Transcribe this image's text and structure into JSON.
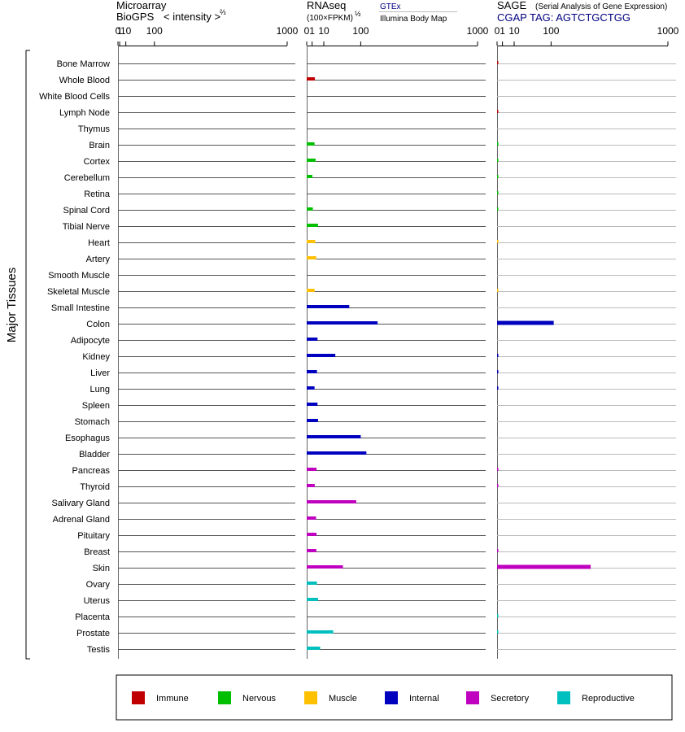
{
  "side_label": "Major Tissues",
  "headers": {
    "microarray": {
      "line1": "Microarray",
      "line2": "BioGPS",
      "scale_label": "< intensity >",
      "scale_exp": "⅔"
    },
    "rnaseq": {
      "line1": "RNAseq",
      "line2": "(100×FPKM)",
      "scale_exp": "½",
      "source_gtex": "GTEx",
      "source_ibm": "Illumina Body Map"
    },
    "sage": {
      "line1": "SAGE",
      "subtitle": "(Serial Analysis of Gene Expression)",
      "tag_label": "CGAP TAG: AGTCTGCTGG"
    }
  },
  "ticks": [
    "0",
    "1",
    "10",
    "100",
    "1000"
  ],
  "colors": {
    "Immune": "#c00000",
    "Nervous": "#00bf00",
    "Muscle": "#ffc000",
    "Internal": "#0000bf",
    "Secretory": "#bf00bf",
    "Reproductive": "#00bfbf",
    "grid_dark": "#555555",
    "grid_light": "#bbbbbb",
    "sage_tag": "#000080",
    "gtex_text": "#000080"
  },
  "legend": [
    "Immune",
    "Nervous",
    "Muscle",
    "Internal",
    "Secretory",
    "Reproductive"
  ],
  "chart_data": {
    "type": "bar",
    "orientation": "horizontal",
    "scale": "power",
    "xlim": [
      0,
      1000
    ],
    "categories": [
      "Bone Marrow",
      "Whole Blood",
      "White Blood Cells",
      "Lymph Node",
      "Thymus",
      "Brain",
      "Cortex",
      "Cerebellum",
      "Retina",
      "Spinal Cord",
      "Tibial Nerve",
      "Heart",
      "Artery",
      "Smooth Muscle",
      "Skeletal Muscle",
      "Small Intestine",
      "Colon",
      "Adipocyte",
      "Kidney",
      "Liver",
      "Lung",
      "Spleen",
      "Stomach",
      "Esophagus",
      "Bladder",
      "Pancreas",
      "Thyroid",
      "Salivary Gland",
      "Adrenal Gland",
      "Pituitary",
      "Breast",
      "Skin",
      "Ovary",
      "Uterus",
      "Placenta",
      "Prostate",
      "Testis"
    ],
    "category_group": [
      "Immune",
      "Immune",
      "Immune",
      "Immune",
      "Immune",
      "Nervous",
      "Nervous",
      "Nervous",
      "Nervous",
      "Nervous",
      "Nervous",
      "Muscle",
      "Muscle",
      "Muscle",
      "Muscle",
      "Internal",
      "Internal",
      "Internal",
      "Internal",
      "Internal",
      "Internal",
      "Internal",
      "Internal",
      "Internal",
      "Internal",
      "Secretory",
      "Secretory",
      "Secretory",
      "Secretory",
      "Secretory",
      "Secretory",
      "Secretory",
      "Reproductive",
      "Reproductive",
      "Reproductive",
      "Reproductive",
      "Reproductive"
    ],
    "series": [
      {
        "name": "Microarray",
        "values": [
          0,
          0,
          0,
          0,
          0,
          0,
          0,
          0,
          0,
          0,
          0,
          0,
          0,
          0,
          0,
          0,
          0,
          0,
          0,
          0,
          0,
          0,
          0,
          0,
          0,
          0,
          0,
          0,
          0,
          0,
          0,
          0,
          0,
          0,
          0,
          0,
          0
        ]
      },
      {
        "name": "RNAseq",
        "values": [
          0,
          2.3,
          0,
          0,
          0,
          2.1,
          2.7,
          1.1,
          0,
          1.3,
          4.4,
          2.5,
          3.1,
          0,
          2.1,
          62,
          172,
          4,
          28,
          3.6,
          2.1,
          4,
          4.4,
          100,
          122,
          3.3,
          2.2,
          84,
          3,
          3.3,
          3.2,
          45,
          3.6,
          4.4,
          0,
          24,
          6.2
        ]
      },
      {
        "name": "SAGE",
        "values": [
          0.02,
          0,
          0,
          0.03,
          0,
          0.02,
          0.02,
          0.02,
          0.02,
          0.02,
          0,
          0.01,
          0,
          0,
          0.01,
          0,
          110,
          0,
          0.03,
          0.03,
          0.03,
          0,
          0,
          0,
          0,
          0.02,
          0.02,
          0,
          0,
          0,
          0.02,
          300,
          0,
          0,
          0.02,
          0.02,
          0
        ]
      }
    ]
  }
}
